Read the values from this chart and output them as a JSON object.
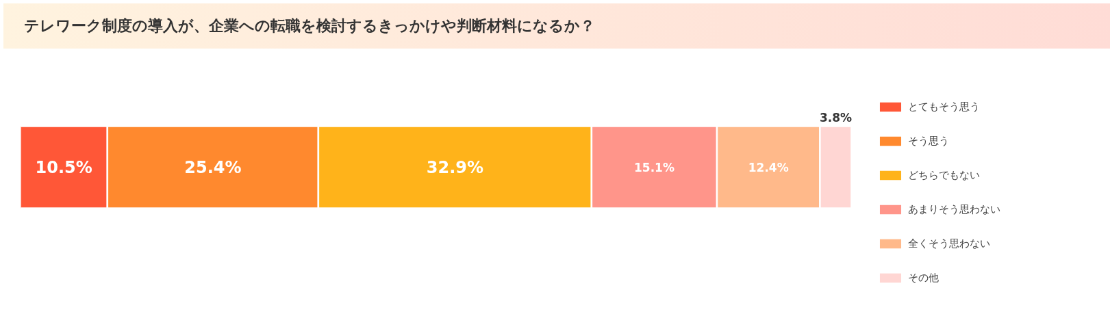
{
  "chart_data": {
    "type": "bar",
    "orientation": "horizontal",
    "stacked": true,
    "title": "テレワーク制度の導入が、企業への転職を検討するきっかけや判断材料になるか？",
    "categories": [
      null
    ],
    "series": [
      {
        "name": "とてもそう思う",
        "color": "#ff5737",
        "values": [
          10.5
        ],
        "value_labels": [
          "10.5%"
        ]
      },
      {
        "name": "そう思う",
        "color": "#ff892e",
        "values": [
          25.4
        ],
        "value_labels": [
          "25.4%"
        ]
      },
      {
        "name": "どちらでもない",
        "color": "#ffb31a",
        "values": [
          32.9
        ],
        "value_labels": [
          "32.9%"
        ]
      },
      {
        "name": "あまりそう思わない",
        "color": "#ff958a",
        "values": [
          15.1
        ],
        "value_labels": [
          "15.1%"
        ]
      },
      {
        "name": "全くそう思わない",
        "color": "#ffb98a",
        "values": [
          12.4
        ],
        "value_labels": [
          "12.4%"
        ]
      },
      {
        "name": "その他",
        "color": "#ffd6d3",
        "values": [
          3.8
        ],
        "value_labels": [
          "3.8%"
        ]
      }
    ],
    "legend": "right",
    "tick_labels": false,
    "grid": false
  }
}
